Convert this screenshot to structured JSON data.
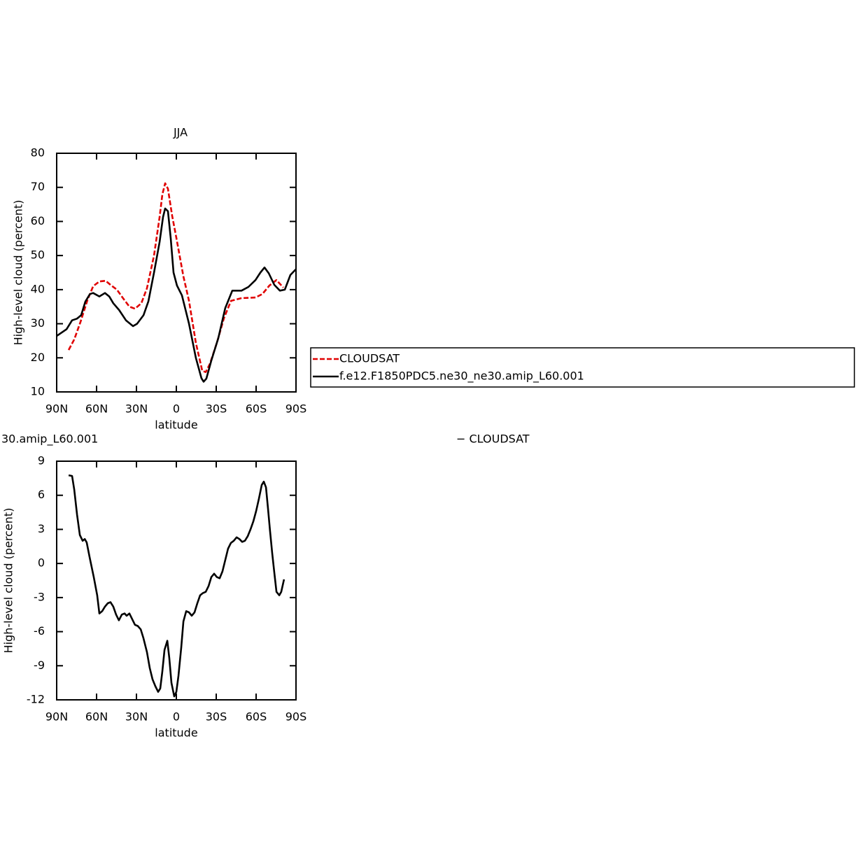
{
  "chart_data": [
    {
      "type": "line",
      "title": "JJA",
      "x_label": "latitude",
      "y_label": "High-level cloud (percent)",
      "xlim": [
        90,
        -90
      ],
      "xticks": [
        {
          "value": 90,
          "label": "90N"
        },
        {
          "value": 60,
          "label": "60N"
        },
        {
          "value": 30,
          "label": "30N"
        },
        0,
        {
          "value": -30,
          "label": "30S"
        },
        {
          "value": -60,
          "label": "60S"
        },
        {
          "value": -90,
          "label": "90S"
        }
      ],
      "ylim": [
        10,
        80
      ],
      "yticks": [
        10,
        20,
        30,
        40,
        50,
        60,
        70,
        80
      ],
      "series": [
        {
          "name": "CLOUDSAT",
          "color": "#e00000",
          "dashed": true,
          "x": [
            81,
            76.8,
            72.1,
            66.8,
            62.6,
            57.9,
            53.2,
            49.5,
            44.7,
            40.5,
            35.3,
            31.1,
            26.3,
            22.1,
            16.8,
            12.6,
            10.5,
            8.4,
            6.3,
            3.2,
            0,
            -5.3,
            -9.5,
            -14.7,
            -19.5,
            -22.1,
            -25.3,
            -30.5,
            -35.8,
            -41.1,
            -49,
            -59.5,
            -64.7,
            -70,
            -75.3,
            -80.5
          ],
          "values": [
            22.3,
            25.4,
            30.5,
            37,
            41,
            42.4,
            42.6,
            41.4,
            40,
            37.7,
            35,
            34.4,
            36,
            40.4,
            50,
            61.3,
            67.9,
            71.2,
            69.6,
            61.8,
            55.2,
            43.9,
            36.7,
            24.4,
            16.2,
            15.8,
            18.3,
            24.4,
            31.6,
            36.7,
            37.5,
            37.7,
            38.7,
            41.2,
            42.8,
            40.6
          ]
        },
        {
          "name": "f.e12.F1850PDC5.ne30_ne30.amip_L60.001",
          "color": "#000000",
          "dashed": false,
          "x": [
            90,
            82.6,
            78.4,
            74.7,
            71.6,
            68.4,
            65,
            62.6,
            57.9,
            53.7,
            50.5,
            47.4,
            43,
            37.9,
            32.6,
            29.5,
            24.7,
            21,
            16.8,
            12.6,
            10,
            8.4,
            6.3,
            4.2,
            2.1,
            -0.5,
            -4.2,
            -9.5,
            -14.7,
            -18.9,
            -20.5,
            -22.6,
            -26.3,
            -31.6,
            -36.8,
            -42.1,
            -49,
            -54.2,
            -59.5,
            -63.2,
            -66.3,
            -69.5,
            -73.7,
            -77.9,
            -81.6,
            -85.8,
            -90
          ],
          "values": [
            26.4,
            28.4,
            31,
            31.5,
            32.5,
            36.5,
            38.7,
            39,
            38,
            39,
            38,
            36,
            34,
            31,
            29.3,
            30,
            32.5,
            36.6,
            45,
            54,
            61.3,
            63.8,
            63,
            55,
            45,
            41.2,
            38.3,
            30,
            20,
            14,
            13,
            13.9,
            19.2,
            25.8,
            34.6,
            39.7,
            39.7,
            40.8,
            42.8,
            45,
            46.5,
            44.8,
            41.4,
            39.7,
            40,
            44.3,
            46
          ]
        }
      ]
    },
    {
      "type": "line",
      "title": "30.amip_L60.001",
      "title_right": "− CLOUDSAT",
      "x_label": "latitude",
      "y_label": "High-level cloud (percent)",
      "xlim": [
        90,
        -90
      ],
      "xticks": [
        {
          "value": 90,
          "label": "90N"
        },
        {
          "value": 60,
          "label": "60N"
        },
        {
          "value": 30,
          "label": "30N"
        },
        0,
        {
          "value": -30,
          "label": "30S"
        },
        {
          "value": -60,
          "label": "60S"
        },
        {
          "value": -90,
          "label": "90S"
        }
      ],
      "ylim": [
        -12,
        9
      ],
      "yticks": [
        -12,
        -9,
        -6,
        -3,
        0,
        3,
        6,
        9
      ],
      "series": [
        {
          "color": "#000000",
          "dashed": false,
          "x": [
            81,
            78.4,
            76.8,
            74.7,
            72.6,
            70.5,
            68.9,
            67.4,
            65.3,
            62.1,
            59.5,
            57.9,
            55.8,
            53.7,
            51.6,
            49.5,
            47.4,
            45.3,
            43.2,
            41,
            38.9,
            37.4,
            35.3,
            33.2,
            31.1,
            29,
            26.8,
            24.7,
            22.1,
            20,
            17.9,
            15.8,
            13.7,
            12.1,
            10.5,
            8.9,
            6.8,
            5.3,
            3.7,
            1.6,
            0,
            -1.6,
            -3.7,
            -5.3,
            -7.4,
            -9.5,
            -11.6,
            -13.7,
            -15.8,
            -17.9,
            -20,
            -22.1,
            -24.2,
            -26.3,
            -28.4,
            -30.5,
            -32.6,
            -34.7,
            -36.8,
            -38.9,
            -41,
            -43.2,
            -45.3,
            -47.4,
            -49.5,
            -51.6,
            -53.7,
            -55.8,
            -57.9,
            -60,
            -62.1,
            -64.2,
            -65.8,
            -67.4,
            -68.9,
            -70.5,
            -72.1,
            -73.7,
            -75.3,
            -77.4,
            -78.9,
            -81
          ],
          "values": [
            7.76,
            7.7,
            6.5,
            4.3,
            2.5,
            2,
            2.15,
            1.85,
            0.6,
            -1.2,
            -2.8,
            -4.4,
            -4.2,
            -3.8,
            -3.5,
            -3.4,
            -3.8,
            -4.5,
            -5,
            -4.5,
            -4.4,
            -4.6,
            -4.4,
            -4.9,
            -5.4,
            -5.5,
            -5.8,
            -6.6,
            -7.8,
            -9.2,
            -10.2,
            -10.8,
            -11.3,
            -11,
            -9.5,
            -7.6,
            -6.8,
            -8.3,
            -10.5,
            -11.7,
            -11.3,
            -9.9,
            -7.4,
            -5.1,
            -4.2,
            -4.3,
            -4.6,
            -4.3,
            -3.5,
            -2.8,
            -2.6,
            -2.5,
            -2,
            -1.2,
            -0.9,
            -1.2,
            -1.3,
            -0.7,
            0.3,
            1.3,
            1.8,
            2,
            2.3,
            2.15,
            1.9,
            2,
            2.4,
            3,
            3.7,
            4.6,
            5.7,
            6.9,
            7.2,
            6.7,
            4.9,
            2.8,
            0.9,
            -0.8,
            -2.5,
            -2.8,
            -2.5,
            -1.4
          ]
        }
      ]
    }
  ]
}
